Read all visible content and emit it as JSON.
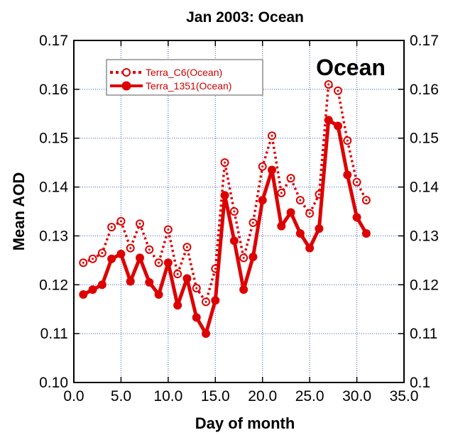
{
  "chart_data": {
    "type": "line",
    "title": "Jan 2003: Ocean",
    "xlabel": "Day of month",
    "ylabel": "Mean AOD",
    "xlim": [
      0,
      35
    ],
    "ylim": [
      0.1,
      0.17
    ],
    "x_ticks": [
      "0.0",
      "5.0",
      "10.0",
      "15.0",
      "20.0",
      "25.0",
      "30.0",
      "35.0"
    ],
    "y_ticks_left": [
      "0.10",
      "0.11",
      "0.12",
      "0.13",
      "0.14",
      "0.15",
      "0.16",
      "0.17"
    ],
    "y_ticks_right": [
      "0.1",
      "0.11",
      "0.12",
      "0.13",
      "0.14",
      "0.15",
      "0.16",
      "0.17"
    ],
    "grid": true,
    "legend_position": "top-left",
    "annotation": "Ocean",
    "x": [
      1,
      2,
      3,
      4,
      5,
      6,
      7,
      8,
      9,
      10,
      11,
      12,
      13,
      14,
      15,
      16,
      17,
      18,
      19,
      20,
      21,
      22,
      23,
      24,
      25,
      26,
      27,
      28,
      29,
      30,
      31
    ],
    "series": [
      {
        "name": "Terra_C6(Ocean)",
        "color": "#dd0000",
        "style": "dotted-open-circle",
        "values": [
          0.1245,
          0.1253,
          0.1265,
          0.1318,
          0.133,
          0.1275,
          0.1325,
          0.1272,
          0.1245,
          0.1313,
          0.1222,
          0.1277,
          0.1193,
          0.1165,
          0.1233,
          0.145,
          0.135,
          0.1255,
          0.1327,
          0.1442,
          0.1505,
          0.1388,
          0.1418,
          0.1373,
          0.1346,
          0.1385,
          0.161,
          0.1597,
          0.1495,
          0.141,
          0.1373
        ]
      },
      {
        "name": "Terra_1351(Ocean)",
        "color": "#dd0000",
        "style": "solid-filled-circle",
        "values": [
          0.118,
          0.119,
          0.12,
          0.1253,
          0.1263,
          0.1207,
          0.1255,
          0.1205,
          0.118,
          0.1245,
          0.1158,
          0.1213,
          0.1133,
          0.11,
          0.1168,
          0.1383,
          0.129,
          0.119,
          0.1257,
          0.1373,
          0.1435,
          0.132,
          0.1348,
          0.1305,
          0.1275,
          0.1315,
          0.1537,
          0.1525,
          0.1425,
          0.1338,
          0.1305
        ]
      }
    ]
  }
}
